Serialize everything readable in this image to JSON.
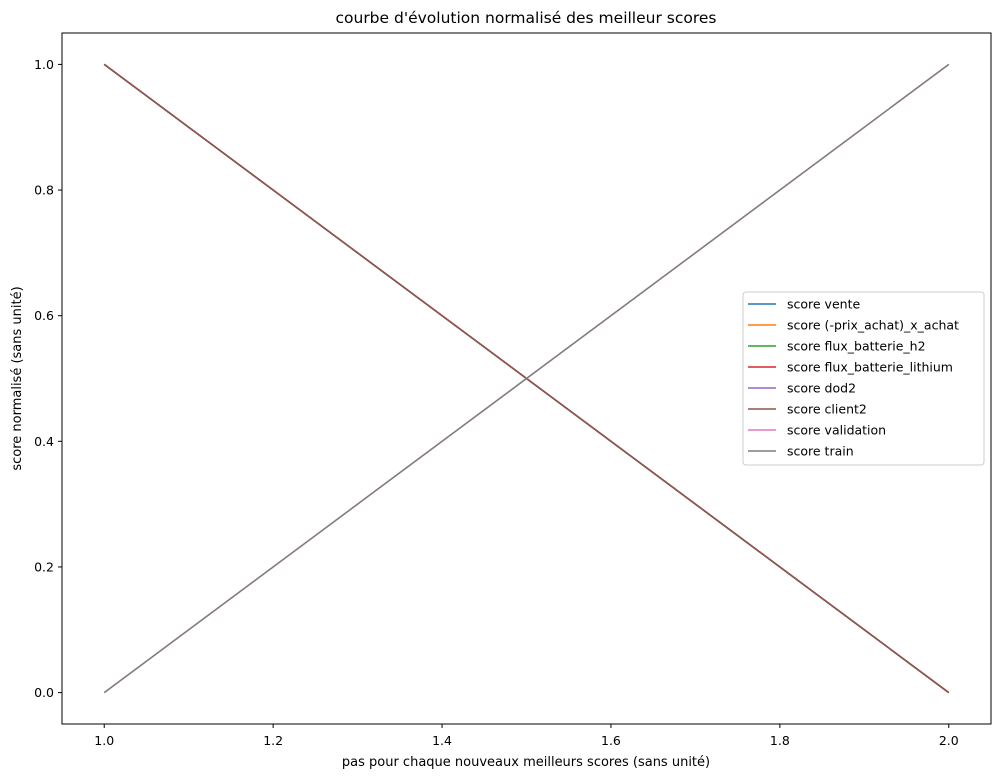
{
  "chart_data": {
    "type": "line",
    "title": "courbe d'évolution normalisé des meilleur scores",
    "xlabel": "pas pour chaque nouveaux meilleurs scores (sans unité)",
    "ylabel": "score normalisé (sans unité)",
    "xlim": [
      0.95,
      2.05
    ],
    "ylim": [
      -0.05,
      1.05
    ],
    "xticks": [
      1.0,
      1.2,
      1.4,
      1.6,
      1.8,
      2.0
    ],
    "xtick_labels": [
      "1.0",
      "1.2",
      "1.4",
      "1.6",
      "1.8",
      "2.0"
    ],
    "yticks": [
      0.0,
      0.2,
      0.4,
      0.6,
      0.8,
      1.0
    ],
    "ytick_labels": [
      "0.0",
      "0.2",
      "0.4",
      "0.6",
      "0.8",
      "1.0"
    ],
    "grid": false,
    "legend_position": "center-right",
    "x": [
      1.0,
      2.0
    ],
    "series": [
      {
        "name": "score vente",
        "values": [
          1.0,
          0.0
        ],
        "color": "#1f77b4"
      },
      {
        "name": "score (-prix_achat)_x_achat",
        "values": [
          1.0,
          0.0
        ],
        "color": "#ff7f0e"
      },
      {
        "name": "score flux_batterie_h2",
        "values": [
          1.0,
          0.0
        ],
        "color": "#2ca02c"
      },
      {
        "name": "score flux_batterie_lithium",
        "values": [
          1.0,
          0.0
        ],
        "color": "#d62728"
      },
      {
        "name": "score dod2",
        "values": [
          1.0,
          0.0
        ],
        "color": "#9467bd"
      },
      {
        "name": "score client2",
        "values": [
          1.0,
          0.0
        ],
        "color": "#8c564b"
      },
      {
        "name": "score validation",
        "values": [
          0.0,
          1.0
        ],
        "color": "#e377c2"
      },
      {
        "name": "score train",
        "values": [
          0.0,
          1.0
        ],
        "color": "#7f7f7f"
      }
    ]
  }
}
